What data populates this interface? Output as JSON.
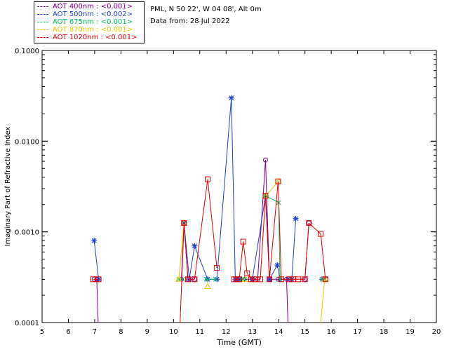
{
  "header": {
    "station": "PML, N 50 22', W 04 08', Alt 0m",
    "data_from": "Data from: 28 Jul 2022"
  },
  "legend": [
    {
      "label": "AOT  400nm : <0.001>",
      "color": "#800080"
    },
    {
      "label": "AOT  500nm : <0.002>",
      "color": "#1f3fd0"
    },
    {
      "label": "AOT  675nm : <0.001>",
      "color": "#00c060"
    },
    {
      "label": "AOT  870nm : <0.001>",
      "color": "#e8c800"
    },
    {
      "label": "AOT 1020nm : <0.001>",
      "color": "#e00000"
    }
  ],
  "chart_data": {
    "type": "line",
    "xlabel": "Time (GMT)",
    "ylabel": "Imaginary Part of Refractive Index",
    "xlim": [
      5,
      20
    ],
    "ylim": [
      0.0001,
      0.1
    ],
    "yscale": "log",
    "xticks": [
      "5",
      "6",
      "7",
      "8",
      "9",
      "10",
      "11",
      "12",
      "13",
      "14",
      "15",
      "16",
      "17",
      "18",
      "19",
      "20"
    ],
    "yticks": [
      {
        "value": 0.0001,
        "label": "0.0001"
      },
      {
        "value": 0.001,
        "label": "0.0010"
      },
      {
        "value": 0.01,
        "label": "0.0100"
      },
      {
        "value": 0.1,
        "label": "0.1000"
      }
    ],
    "series": [
      {
        "name": "AOT  400nm : <0.001>",
        "color": "#800080",
        "marker": "circle",
        "points": [
          [
            6.98,
            0.0003
          ],
          [
            7.08,
            0.0003
          ],
          [
            10.3,
            0.0003
          ],
          [
            10.4,
            0.00125
          ],
          [
            10.55,
            0.0003
          ],
          [
            10.8,
            0.0003
          ],
          [
            12.4,
            0.0003
          ],
          [
            12.5,
            0.0003
          ],
          [
            13.0,
            0.0003
          ],
          [
            13.2,
            0.0003
          ],
          [
            13.5,
            0.0062
          ],
          [
            13.65,
            0.0003
          ],
          [
            13.98,
            0.0003
          ],
          [
            14.3,
            0.0003
          ],
          [
            14.45,
            0.0003
          ],
          [
            15.0,
            0.0003
          ],
          [
            15.15,
            0.00125
          ],
          [
            15.8,
            0.0003
          ]
        ],
        "drops": [
          [
            7.08,
            0.0003
          ],
          [
            14.3,
            0.0003
          ]
        ]
      },
      {
        "name": "AOT  500nm : <0.002>",
        "color": "#1f3fd0",
        "marker": "star",
        "points": [
          [
            6.98,
            0.0008
          ],
          [
            7.15,
            0.0003
          ],
          [
            10.4,
            0.00125
          ],
          [
            10.6,
            0.0003
          ],
          [
            10.8,
            0.0007
          ],
          [
            11.3,
            0.0003
          ],
          [
            11.65,
            0.0003
          ],
          [
            12.2,
            0.03
          ],
          [
            12.35,
            0.0003
          ],
          [
            12.5,
            0.0003
          ],
          [
            12.7,
            0.0003
          ],
          [
            13.0,
            0.0003
          ],
          [
            13.5,
            0.0025
          ],
          [
            13.65,
            0.0003
          ],
          [
            13.95,
            0.00043
          ],
          [
            14.05,
            0.0003
          ],
          [
            14.35,
            0.0003
          ],
          [
            14.5,
            0.0003
          ],
          [
            14.65,
            0.0014
          ],
          [
            15.65,
            0.0003
          ]
        ]
      },
      {
        "name": "AOT  675nm : <0.001>",
        "color": "#00c060",
        "marker": "cross",
        "points": [
          [
            10.2,
            0.0003
          ],
          [
            10.35,
            0.0003
          ],
          [
            11.25,
            0.0003
          ],
          [
            11.6,
            0.0003
          ],
          [
            12.6,
            0.0003
          ],
          [
            12.7,
            0.0003
          ],
          [
            13.5,
            0.0025
          ],
          [
            14.0,
            0.0021
          ],
          [
            14.05,
            0.0003
          ],
          [
            15.65,
            0.0003
          ],
          [
            15.75,
            0.0003
          ]
        ]
      },
      {
        "name": "AOT  870nm : <0.001>",
        "color": "#e8c800",
        "marker": "triangle",
        "points": [
          [
            10.2,
            0.0003
          ],
          [
            10.4,
            0.00125
          ],
          [
            11.3,
            0.00025
          ],
          [
            12.75,
            0.0003
          ],
          [
            13.5,
            0.0025
          ],
          [
            14.0,
            0.0036
          ],
          [
            15.6,
            0.0001
          ],
          [
            15.75,
            0.0003
          ]
        ]
      },
      {
        "name": "AOT 1020nm : <0.001>",
        "color": "#e00000",
        "marker": "square",
        "points": [
          [
            6.95,
            0.0003
          ],
          [
            7.15,
            0.0003
          ],
          [
            10.25,
            0.0001
          ],
          [
            10.4,
            0.00125
          ],
          [
            10.55,
            0.0003
          ],
          [
            10.8,
            0.0003
          ],
          [
            11.3,
            0.0038
          ],
          [
            11.65,
            0.0004
          ],
          [
            12.3,
            0.0003
          ],
          [
            12.4,
            0.0003
          ],
          [
            12.5,
            0.0003
          ],
          [
            12.65,
            0.00078
          ],
          [
            12.8,
            0.00035
          ],
          [
            12.95,
            0.0003
          ],
          [
            13.1,
            0.0003
          ],
          [
            13.3,
            0.0003
          ],
          [
            13.5,
            0.0025
          ],
          [
            13.65,
            0.0003
          ],
          [
            13.98,
            0.0036
          ],
          [
            14.1,
            0.0003
          ],
          [
            14.4,
            0.0003
          ],
          [
            14.55,
            0.0003
          ],
          [
            14.75,
            0.0003
          ],
          [
            15.0,
            0.0003
          ],
          [
            15.15,
            0.00125
          ],
          [
            15.6,
            0.00095
          ],
          [
            15.78,
            0.0003
          ]
        ],
        "line_segments": [
          [
            10.25,
            10.4
          ],
          [
            10.4,
            10.55
          ],
          [
            12.5,
            12.65
          ],
          [
            12.65,
            12.8
          ],
          [
            12.8,
            12.95
          ],
          [
            13.3,
            13.5
          ],
          [
            13.5,
            13.65
          ],
          [
            13.65,
            13.98
          ],
          [
            13.98,
            14.1
          ],
          [
            14.75,
            15.0
          ],
          [
            15.0,
            15.15
          ],
          [
            15.15,
            15.3
          ],
          [
            15.6,
            15.78
          ]
        ]
      }
    ]
  }
}
